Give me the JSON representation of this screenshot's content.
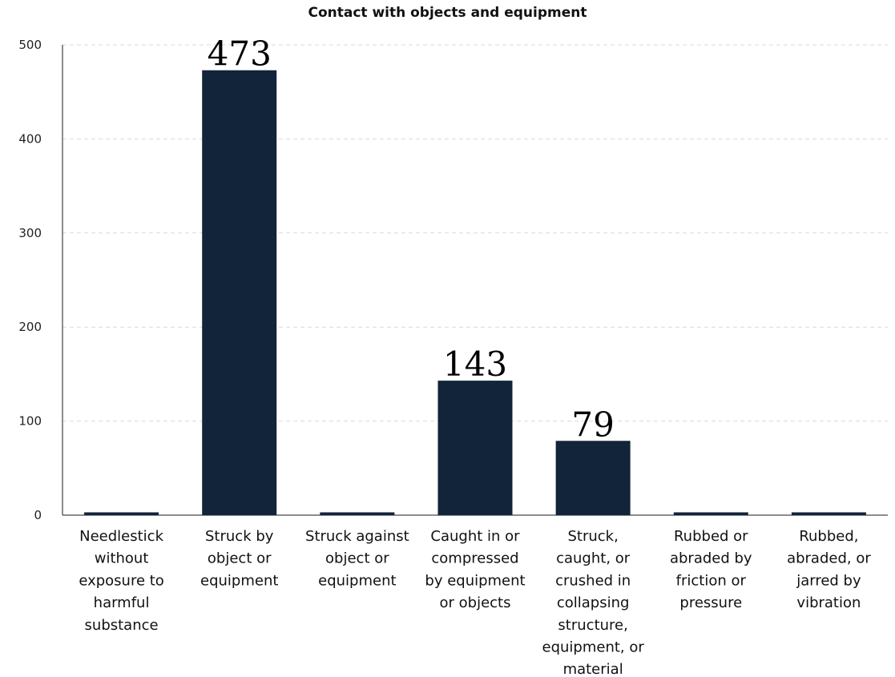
{
  "chart_data": {
    "type": "bar",
    "title": "Contact with objects and equipment",
    "xlabel": "",
    "ylabel": "",
    "categories": [
      "Needlestick without exposure to harmful substance",
      "Struck by object or equipment",
      "Struck against object or equipment",
      "Caught in or compressed by equipment or objects",
      "Struck, caught, or crushed in collapsing structure, equipment, or material",
      "Rubbed or abraded by friction or pressure",
      "Rubbed, abraded, or jarred by vibration"
    ],
    "category_lines": [
      [
        "Needlestick",
        "without",
        "exposure to",
        "harmful",
        "substance"
      ],
      [
        "Struck by",
        "object or",
        "equipment"
      ],
      [
        "Struck against",
        "object or",
        "equipment"
      ],
      [
        "Caught in or",
        "compressed",
        "by equipment",
        "or objects"
      ],
      [
        "Struck,",
        "caught, or",
        "crushed in",
        "collapsing",
        "structure,",
        "equipment, or",
        "material"
      ],
      [
        "Rubbed or",
        "abraded by",
        "friction or",
        "pressure"
      ],
      [
        "Rubbed,",
        "abraded, or",
        "jarred by",
        "vibration"
      ]
    ],
    "values": [
      3,
      473,
      3,
      143,
      79,
      3,
      3
    ],
    "data_labels": [
      "",
      "473",
      "",
      "143",
      "79",
      "",
      ""
    ],
    "ylim": [
      0,
      500
    ],
    "yticks": [
      0,
      100,
      200,
      300,
      400,
      500
    ],
    "grid": true,
    "legend": "none",
    "colors": {
      "bar": "#12243a",
      "grid": "#d9d9d9",
      "axis": "#666666"
    }
  }
}
